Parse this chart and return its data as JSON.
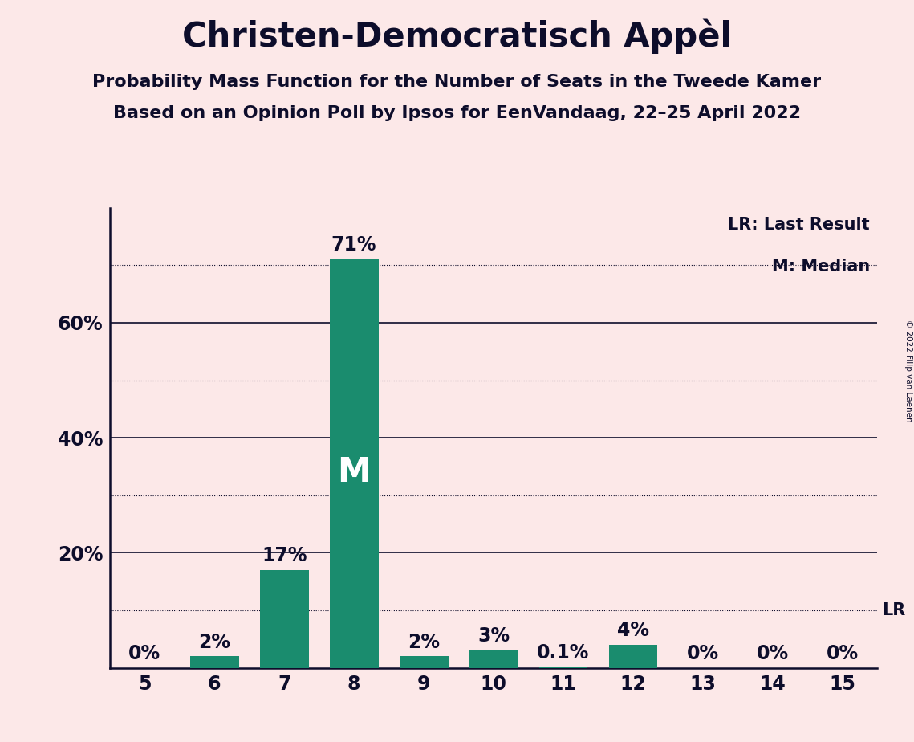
{
  "title": "Christen-Democratisch Appèl",
  "subtitle1": "Probability Mass Function for the Number of Seats in the Tweede Kamer",
  "subtitle2": "Based on an Opinion Poll by Ipsos for EenVandaag, 22–25 April 2022",
  "copyright": "© 2022 Filip van Laenen",
  "categories": [
    5,
    6,
    7,
    8,
    9,
    10,
    11,
    12,
    13,
    14,
    15
  ],
  "values": [
    0.0,
    2.0,
    17.0,
    71.0,
    2.0,
    3.0,
    0.1,
    4.0,
    0.0,
    0.0,
    0.0
  ],
  "labels": [
    "0%",
    "2%",
    "17%",
    "71%",
    "2%",
    "3%",
    "0.1%",
    "4%",
    "0%",
    "0%",
    "0%"
  ],
  "bar_color": "#1a8c6e",
  "background_color": "#fce8e8",
  "text_color": "#0d0d2b",
  "median_seat": 8,
  "median_label": "M",
  "lr_value": 10.0,
  "lr_label": "LR",
  "lr_legend": "LR: Last Result",
  "median_legend": "M: Median",
  "ylim": [
    0,
    80
  ],
  "ytick_values": [
    20,
    40,
    60
  ],
  "solid_lines": [
    20,
    40,
    60
  ],
  "dotted_lines": [
    10,
    30,
    50,
    70
  ],
  "title_fontsize": 30,
  "subtitle_fontsize": 16,
  "tick_fontsize": 17,
  "label_fontsize": 17,
  "legend_fontsize": 15
}
